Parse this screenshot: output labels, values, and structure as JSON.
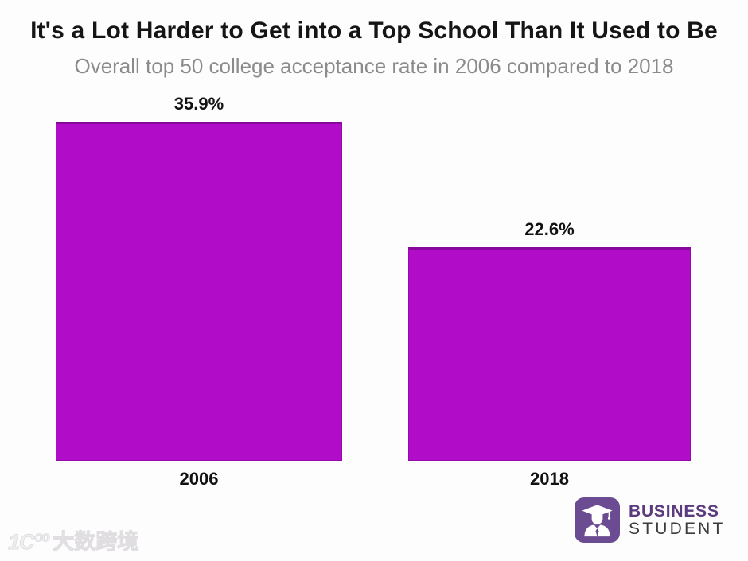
{
  "chart_data": {
    "type": "bar",
    "title": "It's a Lot Harder to Get into a Top School Than It Used to Be",
    "subtitle": "Overall top 50 college acceptance rate in 2006 compared to 2018",
    "categories": [
      "2006",
      "2018"
    ],
    "values": [
      35.9,
      22.6
    ],
    "value_labels": [
      "35.9%",
      "22.6%"
    ],
    "ylabel": "",
    "xlabel": "",
    "ylim": [
      0,
      40
    ],
    "grid": false,
    "legend": "none",
    "bar_color": "#b10dc9"
  },
  "branding": {
    "line1": "BUSINESS",
    "line2": "STUDENT",
    "icon": "graduation-student-icon",
    "accent_purple": "#5b3b7e",
    "icon_background": "#6b4c93"
  },
  "watermark": {
    "glyph": "1Cºº",
    "text": "大数跨境"
  }
}
